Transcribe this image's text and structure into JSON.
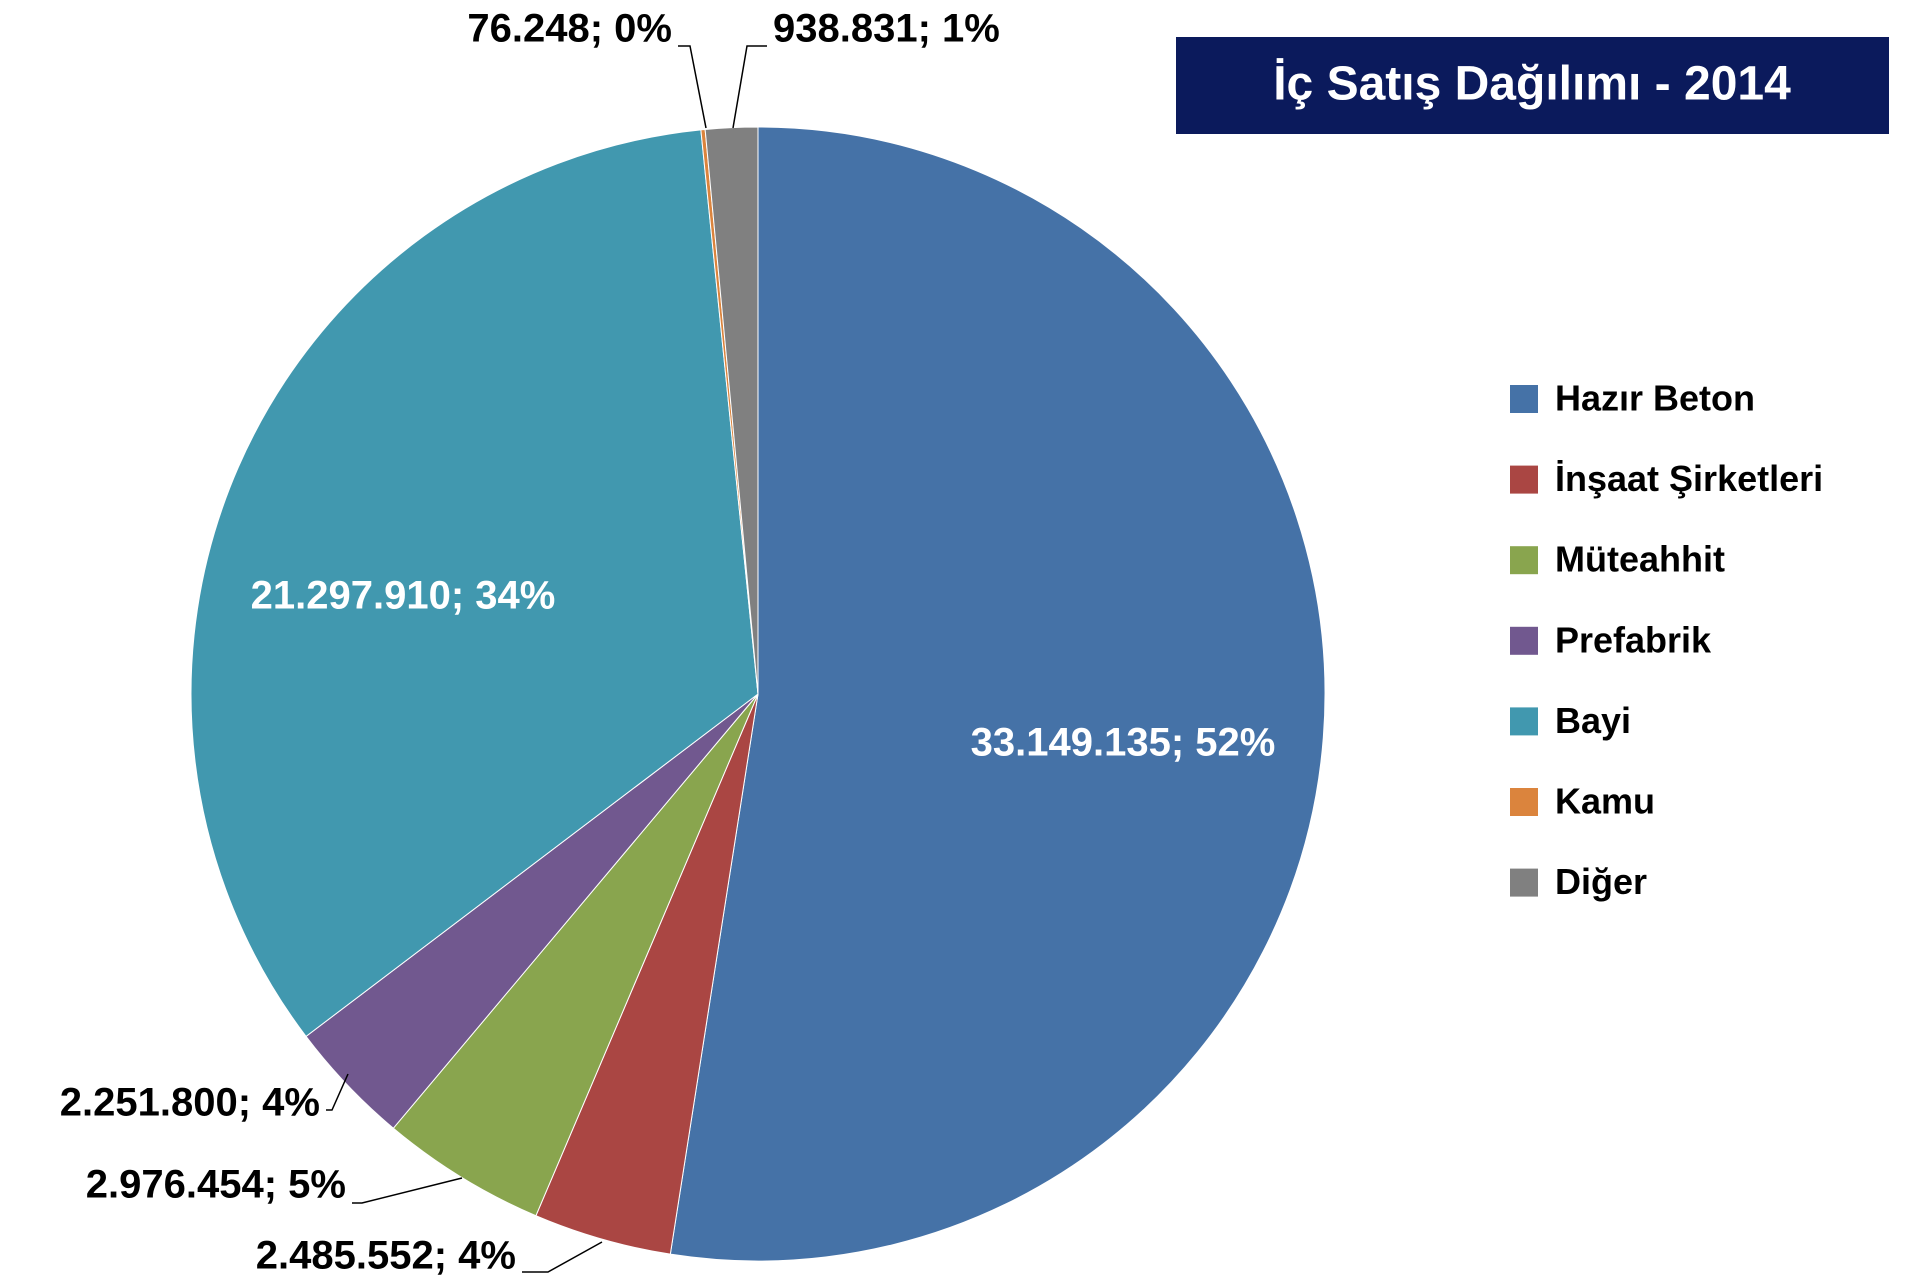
{
  "chart_data": {
    "type": "pie",
    "title": "İç Satış Dağılımı - 2014",
    "categories": [
      "Hazır Beton",
      "İnşaat Şirketleri",
      "Müteahhit",
      "Prefabrik",
      "Bayi",
      "Kamu",
      "Diğer"
    ],
    "values": [
      33149135,
      2485552,
      2976454,
      2251800,
      21297910,
      76248,
      938831
    ],
    "value_labels": [
      "33.149.135; 52%",
      "2.485.552; 4%",
      "2.976.454; 5%",
      "2.251.800; 4%",
      "21.297.910; 34%",
      "76.248; 0%",
      "938.831; 1%"
    ],
    "colors": [
      "#4572a7",
      "#aa4643",
      "#89a54e",
      "#71588f",
      "#4198af",
      "#db843d",
      "#808080"
    ],
    "legend": "right"
  }
}
